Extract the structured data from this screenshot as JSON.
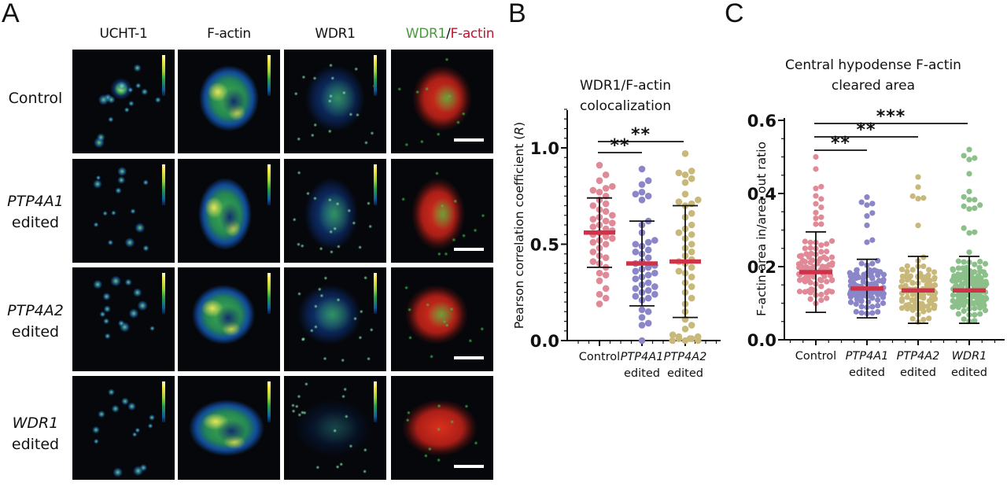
{
  "figure": {
    "panel_letters": [
      "A",
      "B",
      "C"
    ],
    "panel_a": {
      "columns": [
        "UCHT-1",
        "F-actin",
        "WDR1"
      ],
      "merge_column": {
        "green_part": "WDR1",
        "separator": "/",
        "red_part": "F-actin"
      },
      "rows": [
        {
          "line1": "Control",
          "line1_italic": false,
          "line2": ""
        },
        {
          "line1": "PTP4A1",
          "line1_italic": true,
          "line2": "edited"
        },
        {
          "line1": "PTP4A2",
          "line1_italic": true,
          "line2": "edited"
        },
        {
          "line1": "WDR1",
          "line1_italic": true,
          "line2": "edited"
        }
      ],
      "colormap": "viridis-like (blue-green-yellow)",
      "has_scale_bar_in_merge": true,
      "colors": {
        "green": "#4a9a3c",
        "red": "#c8102e"
      }
    }
  },
  "chart_data": [
    {
      "panel": "B",
      "type": "scatter",
      "title": "WDR1/F-actin colocalization",
      "title_lines": [
        "WDR1/F-actin",
        "colocalization"
      ],
      "xlabel": "",
      "ylabel": "Pearson correlation coefficient (R)",
      "ylabel_main": "Pearson correlation coefficient (",
      "ylabel_italic": "R",
      "ylabel_close": ")",
      "ylim": [
        0,
        1.2
      ],
      "yticks": [
        0.0,
        0.5,
        1.0
      ],
      "ytick_labels": [
        "0.0",
        "0.5",
        "1.0"
      ],
      "grid": false,
      "categories": [
        {
          "line1": "Control",
          "italic": false,
          "line2": ""
        },
        {
          "line1": "PTP4A1",
          "italic": true,
          "line2": "edited"
        },
        {
          "line1": "PTP4A2",
          "italic": true,
          "line2": "edited"
        }
      ],
      "series": [
        {
          "name": "Control",
          "color": "#e08a98",
          "mean": 0.56,
          "sd_low": 0.38,
          "sd_high": 0.74,
          "values": [
            0.91,
            0.86,
            0.83,
            0.8,
            0.79,
            0.78,
            0.77,
            0.75,
            0.73,
            0.71,
            0.7,
            0.68,
            0.67,
            0.65,
            0.64,
            0.63,
            0.62,
            0.61,
            0.6,
            0.59,
            0.58,
            0.57,
            0.56,
            0.55,
            0.54,
            0.53,
            0.52,
            0.51,
            0.5,
            0.48,
            0.46,
            0.44,
            0.43,
            0.41,
            0.4,
            0.38,
            0.35,
            0.34,
            0.31,
            0.27,
            0.24,
            0.22,
            0.19
          ]
        },
        {
          "name": "PTP4A1 edited",
          "color": "#8a86c8",
          "mean": 0.4,
          "sd_low": 0.18,
          "sd_high": 0.62,
          "values": [
            0.89,
            0.83,
            0.81,
            0.77,
            0.76,
            0.75,
            0.73,
            0.62,
            0.6,
            0.56,
            0.52,
            0.51,
            0.5,
            0.49,
            0.47,
            0.46,
            0.45,
            0.43,
            0.41,
            0.4,
            0.39,
            0.38,
            0.37,
            0.36,
            0.35,
            0.34,
            0.33,
            0.32,
            0.3,
            0.29,
            0.28,
            0.27,
            0.26,
            0.25,
            0.24,
            0.23,
            0.22,
            0.21,
            0.16,
            0.15,
            0.12,
            0.09,
            0.08,
            0.0
          ]
        },
        {
          "name": "PTP4A2 edited",
          "color": "#c8b87a",
          "mean": 0.41,
          "sd_low": 0.12,
          "sd_high": 0.7,
          "values": [
            0.97,
            0.88,
            0.87,
            0.86,
            0.84,
            0.82,
            0.76,
            0.73,
            0.72,
            0.71,
            0.7,
            0.66,
            0.64,
            0.6,
            0.58,
            0.56,
            0.55,
            0.53,
            0.5,
            0.48,
            0.46,
            0.44,
            0.42,
            0.41,
            0.4,
            0.38,
            0.36,
            0.35,
            0.33,
            0.3,
            0.28,
            0.25,
            0.22,
            0.19,
            0.15,
            0.11,
            0.08,
            0.06,
            0.03,
            0.02,
            0.02,
            0.01,
            0.01,
            0.01,
            0.0,
            0.0,
            0.0
          ]
        }
      ],
      "significance": [
        {
          "from": 0,
          "to": 1,
          "label": "**"
        },
        {
          "from": 0,
          "to": 2,
          "label": "**"
        }
      ],
      "mean_bar_color": "#d0324a"
    },
    {
      "panel": "C",
      "type": "scatter",
      "title": "Central hypodense F-actin cleared area",
      "title_lines": [
        "Central hypodense F-actin",
        "cleared area"
      ],
      "xlabel": "",
      "ylabel": "F-actin area in/area out ratio",
      "ylim": [
        0,
        0.6
      ],
      "yticks": [
        0.0,
        0.2,
        0.4,
        0.6
      ],
      "ytick_labels": [
        "0.0",
        "0.2",
        "0.4",
        "0.6"
      ],
      "grid": false,
      "categories": [
        {
          "line1": "Control",
          "italic": false,
          "line2": ""
        },
        {
          "line1": "PTP4A1",
          "italic": true,
          "line2": "edited"
        },
        {
          "line1": "PTP4A2",
          "italic": true,
          "line2": "edited"
        },
        {
          "line1": "WDR1",
          "italic": true,
          "line2": "edited"
        }
      ],
      "series": [
        {
          "name": "Control",
          "color": "#e08a98",
          "mean": 0.185,
          "sd_low": 0.075,
          "sd_high": 0.295,
          "n_approx": 110,
          "max": 0.5,
          "min": 0.02
        },
        {
          "name": "PTP4A1 edited",
          "color": "#8a86c8",
          "mean": 0.14,
          "sd_low": 0.06,
          "sd_high": 0.22,
          "n_approx": 120,
          "max": 0.39,
          "min": 0.02
        },
        {
          "name": "PTP4A2 edited",
          "color": "#c8b87a",
          "mean": 0.135,
          "sd_low": 0.045,
          "sd_high": 0.228,
          "n_approx": 120,
          "max": 0.445,
          "min": 0.0
        },
        {
          "name": "WDR1 edited",
          "color": "#8cc08a",
          "mean": 0.135,
          "sd_low": 0.045,
          "sd_high": 0.228,
          "n_approx": 180,
          "max": 0.52,
          "min": 0.015
        }
      ],
      "significance": [
        {
          "from": 0,
          "to": 1,
          "label": "**"
        },
        {
          "from": 0,
          "to": 2,
          "label": "**"
        },
        {
          "from": 0,
          "to": 3,
          "label": "***"
        }
      ],
      "mean_bar_color": "#d0324a"
    }
  ]
}
